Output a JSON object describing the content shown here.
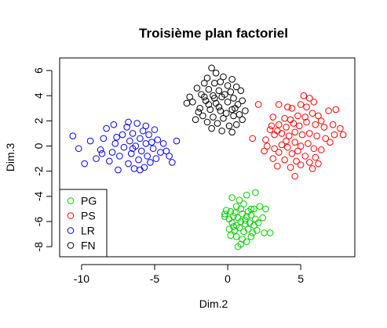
{
  "chart_data": {
    "type": "scatter",
    "title": "Troisième plan factoriel",
    "xlabel": "Dim.2",
    "ylabel": "Dim.3",
    "xlim": [
      -11.5,
      8.7
    ],
    "ylim": [
      -8.8,
      7.0
    ],
    "xticks": [
      -10,
      -5,
      0,
      5
    ],
    "xtick_labels": [
      "-10",
      "-5",
      "0",
      "5"
    ],
    "yticks": [
      -8,
      -6,
      -4,
      -2,
      0,
      2,
      4,
      6
    ],
    "ytick_labels": [
      "-8",
      "-6",
      "-4",
      "-2",
      "0",
      "2",
      "4",
      "6"
    ],
    "grid": false,
    "legend_position": "bottom-left",
    "series": [
      {
        "name": "PG",
        "color": "#00cd00",
        "points": [
          [
            0.3,
            -4.1
          ],
          [
            0.8,
            -4.3
          ],
          [
            1.3,
            -3.9
          ],
          [
            1.9,
            -3.7
          ],
          [
            1.1,
            -4.6
          ],
          [
            0.6,
            -4.8
          ],
          [
            -0.1,
            -5.1
          ],
          [
            -0.2,
            -5.4
          ],
          [
            0.2,
            -5.2
          ],
          [
            0.5,
            -5.3
          ],
          [
            0.9,
            -5.0
          ],
          [
            1.4,
            -5.2
          ],
          [
            1.8,
            -5.0
          ],
          [
            2.2,
            -4.8
          ],
          [
            2.6,
            -5.0
          ],
          [
            -0.2,
            -5.6
          ],
          [
            0.1,
            -5.8
          ],
          [
            0.4,
            -5.6
          ],
          [
            0.7,
            -5.7
          ],
          [
            1.0,
            -5.4
          ],
          [
            1.3,
            -5.6
          ],
          [
            1.6,
            -5.5
          ],
          [
            1.9,
            -5.8
          ],
          [
            2.4,
            -5.7
          ],
          [
            0.3,
            -6.1
          ],
          [
            0.6,
            -6.3
          ],
          [
            0.9,
            -6.0
          ],
          [
            1.2,
            -6.2
          ],
          [
            1.5,
            -6.1
          ],
          [
            1.8,
            -6.3
          ],
          [
            2.1,
            -6.1
          ],
          [
            0.1,
            -6.6
          ],
          [
            0.5,
            -6.7
          ],
          [
            0.8,
            -6.5
          ],
          [
            1.1,
            -6.8
          ],
          [
            1.4,
            -6.6
          ],
          [
            1.7,
            -6.9
          ],
          [
            2.0,
            -6.7
          ],
          [
            2.5,
            -6.9
          ],
          [
            2.9,
            -6.9
          ],
          [
            0.2,
            -7.1
          ],
          [
            0.6,
            -7.2
          ],
          [
            1.0,
            -7.4
          ],
          [
            1.6,
            -7.2
          ],
          [
            0.9,
            -7.8
          ],
          [
            1.3,
            -7.6
          ],
          [
            0.7,
            -8.0
          ],
          [
            1.2,
            -5.9
          ],
          [
            0.4,
            -6.4
          ],
          [
            1.6,
            -5.0
          ]
        ]
      },
      {
        "name": "PS",
        "color": "#ff0000",
        "points": [
          [
            2.1,
            3.3
          ],
          [
            3.5,
            3.3
          ],
          [
            4.1,
            3.1
          ],
          [
            5.2,
            4.0
          ],
          [
            5.6,
            3.8
          ],
          [
            5.9,
            3.5
          ],
          [
            5.4,
            3.1
          ],
          [
            3.1,
            2.3
          ],
          [
            3.9,
            2.2
          ],
          [
            4.3,
            2.1
          ],
          [
            4.8,
            2.4
          ],
          [
            5.3,
            2.3
          ],
          [
            5.8,
            2.6
          ],
          [
            6.2,
            2.4
          ],
          [
            6.9,
            2.8
          ],
          [
            7.4,
            2.9
          ],
          [
            3.0,
            1.6
          ],
          [
            3.5,
            1.7
          ],
          [
            4.0,
            1.5
          ],
          [
            4.5,
            1.8
          ],
          [
            4.9,
            1.6
          ],
          [
            5.4,
            1.9
          ],
          [
            6.0,
            1.7
          ],
          [
            6.6,
            1.5
          ],
          [
            7.2,
            1.7
          ],
          [
            7.7,
            1.4
          ],
          [
            3.2,
            0.9
          ],
          [
            3.7,
            1.0
          ],
          [
            4.2,
            0.8
          ],
          [
            4.6,
            1.1
          ],
          [
            5.1,
            0.9
          ],
          [
            5.6,
            1.0
          ],
          [
            6.1,
            0.8
          ],
          [
            6.7,
            0.6
          ],
          [
            7.3,
            0.9
          ],
          [
            7.9,
            0.9
          ],
          [
            1.7,
            0.6
          ],
          [
            2.6,
            0.5
          ],
          [
            2.7,
            0.0
          ],
          [
            3.2,
            -0.2
          ],
          [
            3.7,
            0.1
          ],
          [
            4.1,
            -0.1
          ],
          [
            4.6,
            0.3
          ],
          [
            5.0,
            0.0
          ],
          [
            5.5,
            0.2
          ],
          [
            6.4,
            -0.3
          ],
          [
            7.0,
            0.3
          ],
          [
            2.5,
            -0.4
          ],
          [
            3.5,
            -0.5
          ],
          [
            4.4,
            -0.6
          ],
          [
            5.3,
            -0.8
          ],
          [
            6.0,
            -0.9
          ],
          [
            3.1,
            -1.0
          ],
          [
            3.9,
            -1.1
          ],
          [
            4.7,
            -1.2
          ],
          [
            5.6,
            -1.3
          ],
          [
            6.2,
            -1.4
          ],
          [
            3.4,
            -1.6
          ],
          [
            4.3,
            -1.7
          ],
          [
            5.0,
            -1.5
          ],
          [
            5.8,
            -1.8
          ],
          [
            4.6,
            -2.4
          ],
          [
            4.4,
            3.0
          ],
          [
            5.0,
            3.3
          ],
          [
            6.4,
            2.0
          ],
          [
            3.4,
            1.2
          ],
          [
            2.9,
            1.3
          ],
          [
            4.0,
            0.4
          ],
          [
            5.9,
            -0.2
          ],
          [
            4.8,
            -0.4
          ]
        ]
      },
      {
        "name": "LR",
        "color": "#0000ff",
        "points": [
          [
            -10.6,
            0.8
          ],
          [
            -10.2,
            -0.2
          ],
          [
            -9.8,
            -1.4
          ],
          [
            -9.4,
            0.4
          ],
          [
            -9.0,
            -1.0
          ],
          [
            -8.7,
            -0.3
          ],
          [
            -8.5,
            0.6
          ],
          [
            -8.3,
            1.4
          ],
          [
            -8.1,
            -1.2
          ],
          [
            -7.9,
            -0.5
          ],
          [
            -7.8,
            1.7
          ],
          [
            -7.7,
            0.2
          ],
          [
            -7.5,
            -1.9
          ],
          [
            -7.4,
            -0.8
          ],
          [
            -7.2,
            0.9
          ],
          [
            -7.1,
            -0.1
          ],
          [
            -6.9,
            1.5
          ],
          [
            -6.8,
            -1.4
          ],
          [
            -6.7,
            0.4
          ],
          [
            -6.6,
            -0.6
          ],
          [
            -6.5,
            1.0
          ],
          [
            -6.4,
            -1.8
          ],
          [
            -6.3,
            0.0
          ],
          [
            -6.2,
            1.8
          ],
          [
            -6.1,
            -1.1
          ],
          [
            -6.0,
            0.6
          ],
          [
            -5.9,
            -0.4
          ],
          [
            -5.8,
            1.2
          ],
          [
            -5.7,
            -1.7
          ],
          [
            -5.6,
            0.2
          ],
          [
            -5.5,
            -0.8
          ],
          [
            -5.4,
            0.9
          ],
          [
            -5.3,
            -1.3
          ],
          [
            -5.2,
            0.3
          ],
          [
            -5.1,
            -0.2
          ],
          [
            -5.0,
            1.3
          ],
          [
            -4.9,
            -1.0
          ],
          [
            -4.8,
            0.5
          ],
          [
            -4.6,
            -0.5
          ],
          [
            -4.4,
            0.2
          ],
          [
            -4.2,
            -0.4
          ],
          [
            -4.0,
            -0.8
          ],
          [
            -3.8,
            -1.3
          ],
          [
            -3.5,
            0.4
          ],
          [
            -6.8,
            1.9
          ],
          [
            -6.0,
            -1.9
          ],
          [
            -7.6,
            0.7
          ],
          [
            -8.6,
            -0.6
          ],
          [
            -5.6,
            1.6
          ],
          [
            -6.5,
            -0.2
          ]
        ]
      },
      {
        "name": "FN",
        "color": "#000000",
        "points": [
          [
            -1.1,
            6.2
          ],
          [
            -0.8,
            5.8
          ],
          [
            -1.4,
            5.4
          ],
          [
            -0.3,
            5.5
          ],
          [
            0.3,
            5.3
          ],
          [
            -1.6,
            5.0
          ],
          [
            -0.9,
            5.0
          ],
          [
            0.0,
            4.8
          ],
          [
            0.6,
            4.7
          ],
          [
            -2.1,
            4.6
          ],
          [
            -1.3,
            4.5
          ],
          [
            -0.6,
            4.4
          ],
          [
            0.2,
            4.3
          ],
          [
            0.9,
            4.4
          ],
          [
            -1.8,
            4.1
          ],
          [
            -1.0,
            4.0
          ],
          [
            -0.4,
            3.9
          ],
          [
            0.4,
            3.8
          ],
          [
            -2.4,
            3.5
          ],
          [
            -1.5,
            3.6
          ],
          [
            -0.8,
            3.4
          ],
          [
            0.0,
            3.5
          ],
          [
            0.7,
            3.3
          ],
          [
            -2.8,
            3.4
          ],
          [
            -1.9,
            3.0
          ],
          [
            -1.2,
            2.9
          ],
          [
            -0.5,
            2.8
          ],
          [
            0.3,
            2.9
          ],
          [
            1.2,
            2.8
          ],
          [
            -1.7,
            2.4
          ],
          [
            -1.0,
            2.3
          ],
          [
            -0.3,
            2.2
          ],
          [
            0.4,
            2.4
          ],
          [
            1.0,
            2.1
          ],
          [
            -2.2,
            2.1
          ],
          [
            -1.4,
            1.9
          ],
          [
            -0.7,
            1.8
          ],
          [
            0.1,
            1.6
          ],
          [
            0.6,
            1.7
          ],
          [
            -1.1,
            1.4
          ],
          [
            -0.4,
            1.2
          ],
          [
            0.3,
            1.1
          ],
          [
            -0.9,
            3.8
          ],
          [
            -0.2,
            4.1
          ],
          [
            -1.6,
            3.9
          ],
          [
            0.5,
            3.0
          ],
          [
            -0.6,
            3.1
          ],
          [
            -1.3,
            3.3
          ],
          [
            -2.6,
            3.9
          ],
          [
            1.0,
            3.6
          ],
          [
            -0.1,
            2.6
          ],
          [
            -2.0,
            2.7
          ],
          [
            0.8,
            2.5
          ],
          [
            -0.5,
            5.1
          ]
        ]
      }
    ]
  }
}
